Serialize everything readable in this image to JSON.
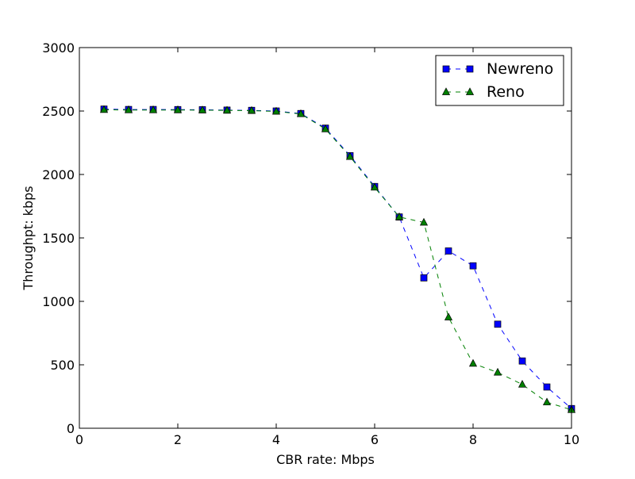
{
  "chart_data": {
    "type": "line",
    "title": "",
    "xlabel": "CBR rate: Mbps",
    "ylabel": "Throughpt: kbps",
    "xlim": [
      0,
      10
    ],
    "ylim": [
      0,
      3000
    ],
    "xticks": [
      0,
      2,
      4,
      6,
      8,
      10
    ],
    "yticks": [
      0,
      500,
      1000,
      1500,
      2000,
      2500,
      3000
    ],
    "grid": false,
    "legend_position": "top-right",
    "x": [
      0.5,
      1.0,
      1.5,
      2.0,
      2.5,
      3.0,
      3.5,
      4.0,
      4.5,
      5.0,
      5.5,
      6.0,
      6.5,
      7.0,
      7.5,
      8.0,
      8.5,
      9.0,
      9.5,
      10.0
    ],
    "series": [
      {
        "name": "Newreno",
        "color": "#0000ff",
        "marker": "square",
        "line_style": "dashed",
        "values": [
          2515,
          2512,
          2512,
          2511,
          2510,
          2507,
          2505,
          2500,
          2480,
          2365,
          2148,
          1905,
          1665,
          1185,
          1397,
          1280,
          820,
          530,
          325,
          155
        ]
      },
      {
        "name": "Reno",
        "color": "#008000",
        "marker": "triangle",
        "line_style": "dashed",
        "values": [
          2510,
          2508,
          2508,
          2508,
          2507,
          2505,
          2503,
          2497,
          2477,
          2358,
          2140,
          1898,
          1665,
          1622,
          875,
          510,
          440,
          345,
          205,
          145
        ]
      }
    ]
  }
}
